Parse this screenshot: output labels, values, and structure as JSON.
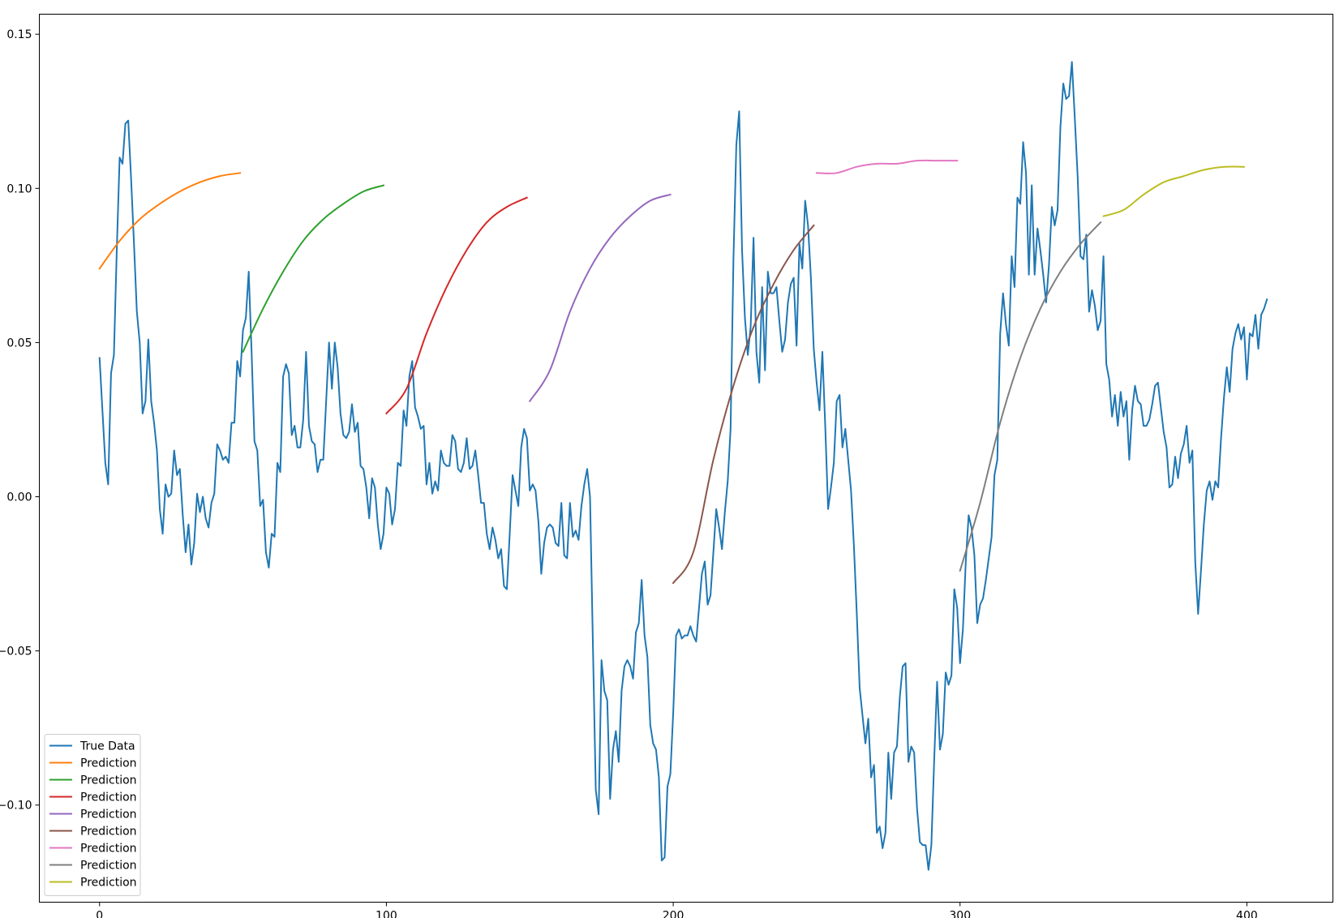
{
  "chart_data": {
    "type": "line",
    "title": "",
    "xlabel": "",
    "ylabel": "",
    "xlim": [
      -21,
      430
    ],
    "ylim": [
      -0.1315,
      0.1565
    ],
    "x_ticks": [
      0,
      100,
      200,
      300,
      400
    ],
    "x_tick_labels": [
      "0",
      "100",
      "200",
      "300",
      "400"
    ],
    "y_ticks": [
      -0.1,
      -0.05,
      0.0,
      0.05,
      0.1,
      0.15
    ],
    "y_tick_labels": [
      "−0.10",
      "−0.05",
      "0.00",
      "0.05",
      "0.10",
      "0.15"
    ],
    "grid": false,
    "legend_position": "lower-left",
    "series": [
      {
        "name": "True Data",
        "color": "#1f77b4",
        "kind": "true",
        "x_start": 0,
        "values": [
          0.045,
          0.028,
          0.011,
          0.004,
          0.04,
          0.046,
          0.08,
          0.11,
          0.108,
          0.121,
          0.122,
          0.103,
          0.082,
          0.06,
          0.05,
          0.027,
          0.031,
          0.051,
          0.031,
          0.024,
          0.015,
          -0.004,
          -0.012,
          0.004,
          0.0,
          0.001,
          0.015,
          0.007,
          0.009,
          -0.006,
          -0.018,
          -0.009,
          -0.022,
          -0.015,
          0.001,
          -0.005,
          0.0,
          -0.007,
          -0.01,
          -0.002,
          0.001,
          0.017,
          0.015,
          0.012,
          0.013,
          0.011,
          0.024,
          0.024,
          0.044,
          0.039,
          0.054,
          0.058,
          0.073,
          0.047,
          0.018,
          0.015,
          -0.003,
          -0.001,
          -0.018,
          -0.023,
          -0.012,
          -0.013,
          0.011,
          0.008,
          0.039,
          0.043,
          0.04,
          0.02,
          0.023,
          0.016,
          0.016,
          0.025,
          0.047,
          0.023,
          0.018,
          0.017,
          0.008,
          0.012,
          0.012,
          0.031,
          0.05,
          0.035,
          0.05,
          0.042,
          0.027,
          0.02,
          0.019,
          0.021,
          0.03,
          0.021,
          0.024,
          0.01,
          0.009,
          0.003,
          -0.007,
          0.006,
          0.003,
          -0.009,
          -0.017,
          -0.012,
          0.003,
          0.001,
          -0.009,
          -0.004,
          0.011,
          0.01,
          0.028,
          0.023,
          0.039,
          0.044,
          0.029,
          0.026,
          0.022,
          0.023,
          0.004,
          0.011,
          0.001,
          0.005,
          0.002,
          0.015,
          0.011,
          0.01,
          0.01,
          0.02,
          0.018,
          0.009,
          0.008,
          0.011,
          0.019,
          0.009,
          0.01,
          0.015,
          0.007,
          -0.002,
          -0.002,
          -0.012,
          -0.017,
          -0.01,
          -0.014,
          -0.02,
          -0.017,
          -0.029,
          -0.03,
          -0.012,
          0.007,
          0.002,
          -0.003,
          0.016,
          0.022,
          0.019,
          0.002,
          0.004,
          0.002,
          -0.008,
          -0.025,
          -0.015,
          -0.01,
          -0.009,
          -0.01,
          -0.015,
          -0.016,
          -0.002,
          -0.019,
          -0.02,
          -0.002,
          -0.013,
          -0.011,
          -0.014,
          -0.003,
          0.004,
          0.009,
          0.0,
          -0.048,
          -0.095,
          -0.103,
          -0.053,
          -0.063,
          -0.066,
          -0.098,
          -0.082,
          -0.076,
          -0.086,
          -0.063,
          -0.055,
          -0.053,
          -0.055,
          -0.059,
          -0.044,
          -0.041,
          -0.027,
          -0.045,
          -0.052,
          -0.074,
          -0.08,
          -0.082,
          -0.091,
          -0.118,
          -0.117,
          -0.094,
          -0.09,
          -0.07,
          -0.045,
          -0.043,
          -0.046,
          -0.045,
          -0.045,
          -0.042,
          -0.045,
          -0.047,
          -0.036,
          -0.025,
          -0.021,
          -0.035,
          -0.032,
          -0.018,
          -0.004,
          -0.01,
          -0.017,
          -0.005,
          0.005,
          0.022,
          0.077,
          0.114,
          0.125,
          0.08,
          0.058,
          0.046,
          0.055,
          0.084,
          0.047,
          0.037,
          0.068,
          0.041,
          0.073,
          0.066,
          0.066,
          0.068,
          0.057,
          0.047,
          0.051,
          0.063,
          0.069,
          0.071,
          0.049,
          0.082,
          0.074,
          0.096,
          0.088,
          0.071,
          0.048,
          0.037,
          0.028,
          0.047,
          0.023,
          -0.004,
          0.003,
          0.011,
          0.031,
          0.033,
          0.016,
          0.022,
          0.012,
          0.002,
          -0.016,
          -0.038,
          -0.062,
          -0.071,
          -0.08,
          -0.072,
          -0.091,
          -0.087,
          -0.109,
          -0.107,
          -0.114,
          -0.109,
          -0.083,
          -0.098,
          -0.083,
          -0.081,
          -0.065,
          -0.055,
          -0.054,
          -0.086,
          -0.081,
          -0.083,
          -0.101,
          -0.112,
          -0.113,
          -0.113,
          -0.121,
          -0.113,
          -0.085,
          -0.06,
          -0.082,
          -0.077,
          -0.057,
          -0.061,
          -0.058,
          -0.03,
          -0.036,
          -0.054,
          -0.043,
          -0.021,
          -0.006,
          -0.01,
          -0.019,
          -0.041,
          -0.035,
          -0.033,
          -0.027,
          -0.02,
          -0.013,
          0.007,
          0.012,
          0.053,
          0.066,
          0.056,
          0.049,
          0.078,
          0.068,
          0.097,
          0.095,
          0.115,
          0.105,
          0.072,
          0.101,
          0.072,
          0.087,
          0.08,
          0.072,
          0.063,
          0.075,
          0.094,
          0.088,
          0.093,
          0.12,
          0.134,
          0.129,
          0.13,
          0.141,
          0.123,
          0.104,
          0.078,
          0.077,
          0.085,
          0.06,
          0.067,
          0.062,
          0.054,
          0.057,
          0.078,
          0.043,
          0.038,
          0.026,
          0.033,
          0.023,
          0.034,
          0.026,
          0.031,
          0.012,
          0.028,
          0.036,
          0.031,
          0.03,
          0.023,
          0.023,
          0.025,
          0.03,
          0.036,
          0.037,
          0.029,
          0.021,
          0.016,
          0.003,
          0.004,
          0.013,
          0.006,
          0.014,
          0.017,
          0.023,
          0.011,
          0.015,
          -0.021,
          -0.038,
          -0.024,
          -0.009,
          0.002,
          0.005,
          -0.001,
          0.005,
          0.003,
          0.019,
          0.032,
          0.042,
          0.034,
          0.048,
          0.053,
          0.056,
          0.051,
          0.055,
          0.038,
          0.053,
          0.052,
          0.059,
          0.048,
          0.059,
          0.061,
          0.064
        ]
      },
      {
        "name": "Prediction",
        "color": "#ff7f0e",
        "kind": "prediction",
        "x_start": 0,
        "x_end": 49,
        "values": [
          0.074,
          0.083,
          0.09,
          0.095,
          0.099,
          0.102,
          0.104,
          0.105
        ]
      },
      {
        "name": "Prediction",
        "color": "#2ca02c",
        "kind": "prediction",
        "x_start": 50,
        "x_end": 99,
        "values": [
          0.047,
          0.061,
          0.073,
          0.083,
          0.09,
          0.095,
          0.099,
          0.101
        ]
      },
      {
        "name": "Prediction",
        "color": "#d62728",
        "kind": "prediction",
        "x_start": 100,
        "x_end": 149,
        "values": [
          0.027,
          0.035,
          0.053,
          0.068,
          0.08,
          0.089,
          0.094,
          0.097
        ]
      },
      {
        "name": "Prediction",
        "color": "#9467bd",
        "kind": "prediction",
        "x_start": 150,
        "x_end": 199,
        "values": [
          0.031,
          0.041,
          0.06,
          0.074,
          0.084,
          0.091,
          0.096,
          0.098
        ]
      },
      {
        "name": "Prediction",
        "color": "#8c564b",
        "kind": "prediction",
        "x_start": 200,
        "x_end": 249,
        "values": [
          -0.028,
          -0.018,
          0.012,
          0.036,
          0.055,
          0.069,
          0.08,
          0.088
        ]
      },
      {
        "name": "Prediction",
        "color": "#e377c2",
        "kind": "prediction",
        "x_start": 250,
        "x_end": 299,
        "values": [
          0.105,
          0.105,
          0.107,
          0.108,
          0.108,
          0.109,
          0.109,
          0.109
        ]
      },
      {
        "name": "Prediction",
        "color": "#7f7f7f",
        "kind": "prediction",
        "x_start": 300,
        "x_end": 349,
        "values": [
          -0.024,
          -0.002,
          0.024,
          0.045,
          0.061,
          0.073,
          0.082,
          0.089
        ]
      },
      {
        "name": "Prediction",
        "color": "#bcbd22",
        "kind": "prediction",
        "x_start": 350,
        "x_end": 399,
        "values": [
          0.091,
          0.093,
          0.098,
          0.102,
          0.104,
          0.106,
          0.107,
          0.107
        ]
      }
    ]
  }
}
